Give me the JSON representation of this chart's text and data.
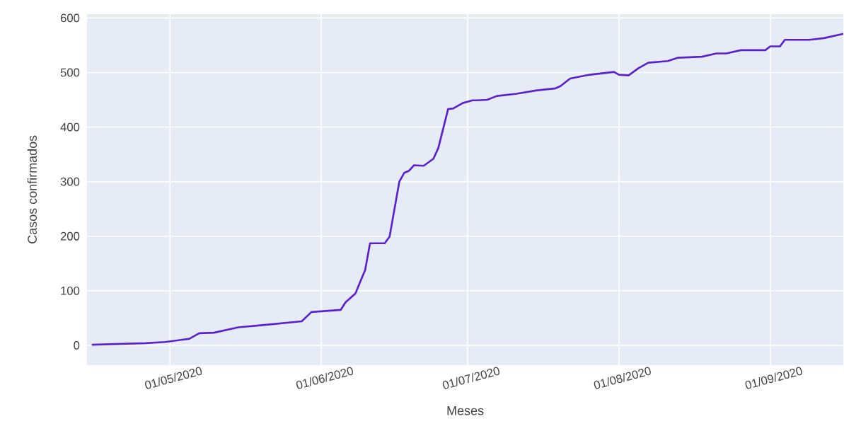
{
  "chart_data": {
    "type": "line",
    "xlabel": "Meses",
    "ylabel": "Casos confirmados",
    "color": "#5b21d1",
    "grid": true,
    "x": [
      "2020-04-15",
      "2020-04-26",
      "2020-04-30",
      "2020-05-05",
      "2020-05-07",
      "2020-05-10",
      "2020-05-15",
      "2020-05-20",
      "2020-05-28",
      "2020-05-30",
      "2020-06-05",
      "2020-06-06",
      "2020-06-08",
      "2020-06-10",
      "2020-06-11",
      "2020-06-14",
      "2020-06-15",
      "2020-06-17",
      "2020-06-18",
      "2020-06-19",
      "2020-06-20",
      "2020-06-22",
      "2020-06-24",
      "2020-06-25",
      "2020-06-27",
      "2020-06-28",
      "2020-06-30",
      "2020-07-02",
      "2020-07-03",
      "2020-07-05",
      "2020-07-07",
      "2020-07-11",
      "2020-07-15",
      "2020-07-19",
      "2020-07-20",
      "2020-07-22",
      "2020-07-26",
      "2020-07-31",
      "2020-08-01",
      "2020-08-03",
      "2020-08-05",
      "2020-08-07",
      "2020-08-11",
      "2020-08-13",
      "2020-08-18",
      "2020-08-21",
      "2020-08-23",
      "2020-08-26",
      "2020-08-31",
      "2020-09-01",
      "2020-09-03",
      "2020-09-04",
      "2020-09-09",
      "2020-09-12",
      "2020-09-16"
    ],
    "values": [
      1,
      4,
      6,
      12,
      22,
      23,
      33,
      37,
      44,
      61,
      65,
      79,
      95,
      138,
      187,
      187,
      199,
      300,
      316,
      320,
      330,
      329,
      342,
      362,
      433,
      434,
      444,
      449,
      449,
      450,
      457,
      461,
      467,
      471,
      475,
      489,
      496,
      501,
      496,
      495,
      508,
      518,
      521,
      527,
      529,
      535,
      535,
      541,
      541,
      548,
      548,
      560,
      560,
      563,
      571
    ],
    "xlim": [
      "2020-04-14",
      "2020-09-16"
    ],
    "ylim": [
      -36,
      607
    ],
    "xticks": [
      {
        "value": "2020-05-01",
        "label": "01/05/2020"
      },
      {
        "value": "2020-06-01",
        "label": "01/06/2020"
      },
      {
        "value": "2020-07-01",
        "label": "01/07/2020"
      },
      {
        "value": "2020-08-01",
        "label": "01/08/2020"
      },
      {
        "value": "2020-09-01",
        "label": "01/09/2020"
      }
    ],
    "yticks": [
      0,
      100,
      200,
      300,
      400,
      500,
      600
    ]
  }
}
